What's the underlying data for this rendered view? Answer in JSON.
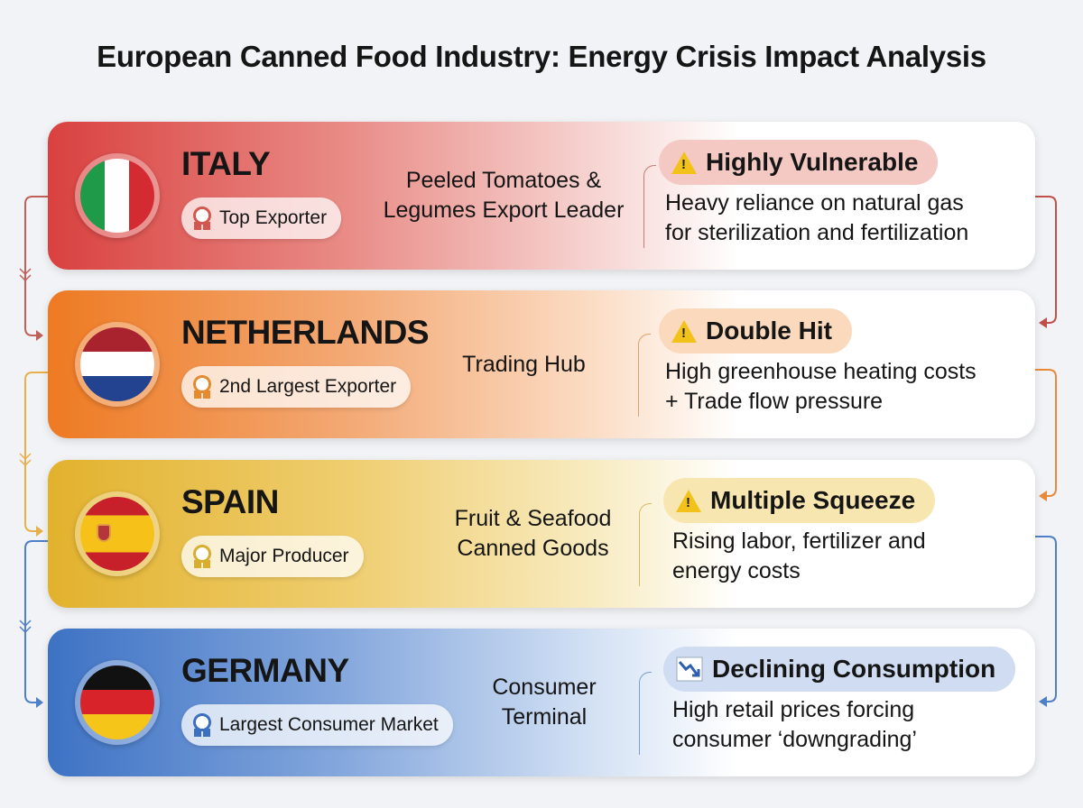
{
  "title": "European Canned Food Industry: Energy Crisis Impact Analysis",
  "countries": [
    {
      "name": "ITALY",
      "badge": "Top Exporter",
      "focus_line1": "Peeled Tomatoes &",
      "focus_line2": "Legumes Export Leader",
      "tag_icon": "warning-icon",
      "tag": "Highly Vulnerable",
      "desc_line1": "Heavy reliance on natural gas",
      "desc_line2": "for sterilization and fertilization",
      "color": "#d9413f"
    },
    {
      "name": "NETHERLANDS",
      "badge": "2nd Largest Exporter",
      "focus_line1": "Trading Hub",
      "focus_line2": "",
      "tag_icon": "warning-icon",
      "tag": "Double Hit",
      "desc_line1": "High greenhouse heating costs",
      "desc_line2": "+ Trade flow pressure",
      "color": "#ee7a22"
    },
    {
      "name": "SPAIN",
      "badge": "Major Producer",
      "focus_line1": "Fruit & Seafood",
      "focus_line2": "Canned Goods",
      "tag_icon": "warning-icon",
      "tag": "Multiple Squeeze",
      "desc_line1": "Rising labor, fertilizer and",
      "desc_line2": "energy costs",
      "color": "#e2b22d"
    },
    {
      "name": "GERMANY",
      "badge": "Largest Consumer Market",
      "focus_line1": "Consumer",
      "focus_line2": "Terminal",
      "tag_icon": "declining-chart-icon",
      "tag": "Declining Consumption",
      "desc_line1": "High retail prices forcing",
      "desc_line2": "consumer ‘downgrading’",
      "color": "#3d72c4"
    }
  ]
}
